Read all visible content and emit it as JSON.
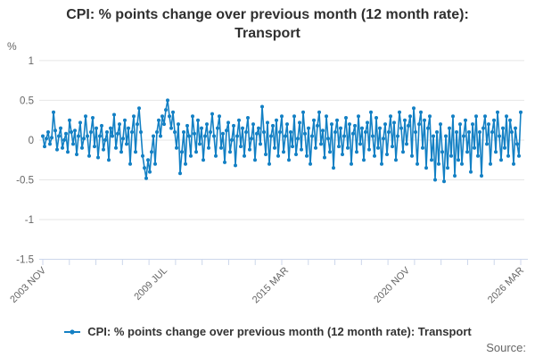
{
  "header": {
    "title": "CPI: % points change over previous month (12 month rate): Transport"
  },
  "source_label": "Source:",
  "chart_data": {
    "type": "line",
    "title": "CPI: % points change over previous month (12 month rate): Transport",
    "ylabel": "%",
    "xlabel": "",
    "ylim": [
      -1.5,
      1.1
    ],
    "yticks": [
      1,
      0.5,
      0,
      -0.5,
      -1,
      -1.5
    ],
    "grid": "horizontal",
    "legend_position": "bottom",
    "x_unit": "month",
    "x_start": "2003 NOV",
    "x_end": "2026 MAR",
    "x_range_months": 268,
    "x_minor_tick_count": 19,
    "x_tick_labels": [
      {
        "label": "2003 NOV",
        "month": 0
      },
      {
        "label": "2009 JUL",
        "month": 68
      },
      {
        "label": "2015 MAR",
        "month": 136
      },
      {
        "label": "2020 NOV",
        "month": 204
      },
      {
        "label": "2026 MAR",
        "month": 268
      }
    ],
    "colors": {
      "series": "#1380c4",
      "grid": "#e6e6e6",
      "axis": "#ccd6eb",
      "tick_label": "#666666",
      "title_text": "#2f2f2f"
    },
    "series": [
      {
        "name": "CPI: % points change over previous month (12 month rate): Transport",
        "color": "#1380c4",
        "marker": "circle",
        "freq": "monthly",
        "values": [
          0.05,
          -0.08,
          0.02,
          0.1,
          -0.05,
          0.03,
          0.35,
          0.12,
          -0.12,
          0.05,
          0.15,
          -0.1,
          0.0,
          0.08,
          -0.15,
          0.25,
          0.1,
          -0.05,
          0.12,
          -0.18,
          0.05,
          0.22,
          -0.1,
          0.02,
          0.3,
          0.05,
          -0.2,
          0.1,
          0.28,
          -0.08,
          0.15,
          -0.22,
          0.05,
          0.18,
          -0.12,
          0.0,
          0.1,
          -0.25,
          0.15,
          0.05,
          0.32,
          -0.1,
          0.08,
          0.2,
          -0.15,
          0.02,
          0.25,
          -0.05,
          0.15,
          -0.3,
          0.1,
          0.3,
          -0.15,
          0.2,
          0.4,
          0.1,
          -0.2,
          -0.35,
          -0.48,
          -0.25,
          -0.4,
          -0.15,
          0.05,
          -0.3,
          0.1,
          0.25,
          0.05,
          0.3,
          0.2,
          0.38,
          0.5,
          0.3,
          0.15,
          0.35,
          0.1,
          -0.1,
          0.2,
          -0.42,
          -0.15,
          0.1,
          -0.3,
          0.18,
          0.05,
          -0.2,
          0.3,
          0.08,
          -0.15,
          0.25,
          -0.05,
          0.15,
          -0.25,
          0.05,
          0.2,
          -0.1,
          0.1,
          0.33,
          0.05,
          -0.2,
          0.15,
          0.3,
          -0.1,
          0.08,
          -0.28,
          0.12,
          0.22,
          -0.15,
          0.0,
          0.18,
          -0.32,
          0.05,
          0.25,
          -0.08,
          0.15,
          -0.2,
          0.1,
          0.28,
          -0.12,
          0.02,
          0.2,
          -0.25,
          0.08,
          0.15,
          -0.05,
          0.42,
          0.1,
          -0.18,
          0.22,
          -0.3,
          0.05,
          0.18,
          -0.1,
          0.25,
          -0.2,
          0.1,
          0.3,
          -0.15,
          0.05,
          0.2,
          -0.25,
          0.1,
          -0.08,
          0.3,
          -0.18,
          0.02,
          0.22,
          -0.12,
          0.35,
          0.08,
          -0.2,
          0.15,
          -0.3,
          0.05,
          0.25,
          -0.1,
          0.18,
          0.35,
          -0.05,
          0.12,
          -0.22,
          0.3,
          0.02,
          -0.15,
          0.2,
          -0.35,
          0.1,
          0.25,
          -0.08,
          0.15,
          -0.18,
          0.05,
          0.28,
          -0.1,
          0.2,
          -0.3,
          0.08,
          0.18,
          -0.15,
          0.3,
          -0.05,
          0.15,
          -0.25,
          0.1,
          0.22,
          -0.12,
          0.35,
          0.05,
          -0.2,
          0.28,
          -0.1,
          0.15,
          -0.3,
          0.02,
          0.2,
          -0.18,
          0.1,
          0.3,
          -0.08,
          0.22,
          -0.25,
          0.05,
          0.35,
          0.15,
          -0.15,
          0.25,
          -0.05,
          0.18,
          0.3,
          -0.2,
          0.4,
          0.1,
          -0.3,
          0.2,
          0.35,
          -0.1,
          0.25,
          -0.35,
          0.15,
          0.3,
          -0.25,
          0.05,
          -0.5,
          0.1,
          -0.3,
          0.2,
          -0.15,
          -0.52,
          0.05,
          -0.35,
          0.15,
          -0.2,
          0.3,
          -0.45,
          0.1,
          -0.25,
          0.2,
          -0.3,
          0.05,
          0.25,
          -0.15,
          0.1,
          -0.4,
          0.2,
          -0.1,
          0.3,
          -0.2,
          0.1,
          -0.45,
          0.15,
          0.3,
          -0.05,
          0.2,
          -0.3,
          0.1,
          0.25,
          -0.15,
          0.35,
          0.05,
          -0.25,
          0.15,
          -0.1,
          0.3,
          -0.2,
          0.25,
          0.1,
          -0.3,
          0.15,
          -0.05,
          -0.2,
          0.35
        ]
      }
    ]
  }
}
